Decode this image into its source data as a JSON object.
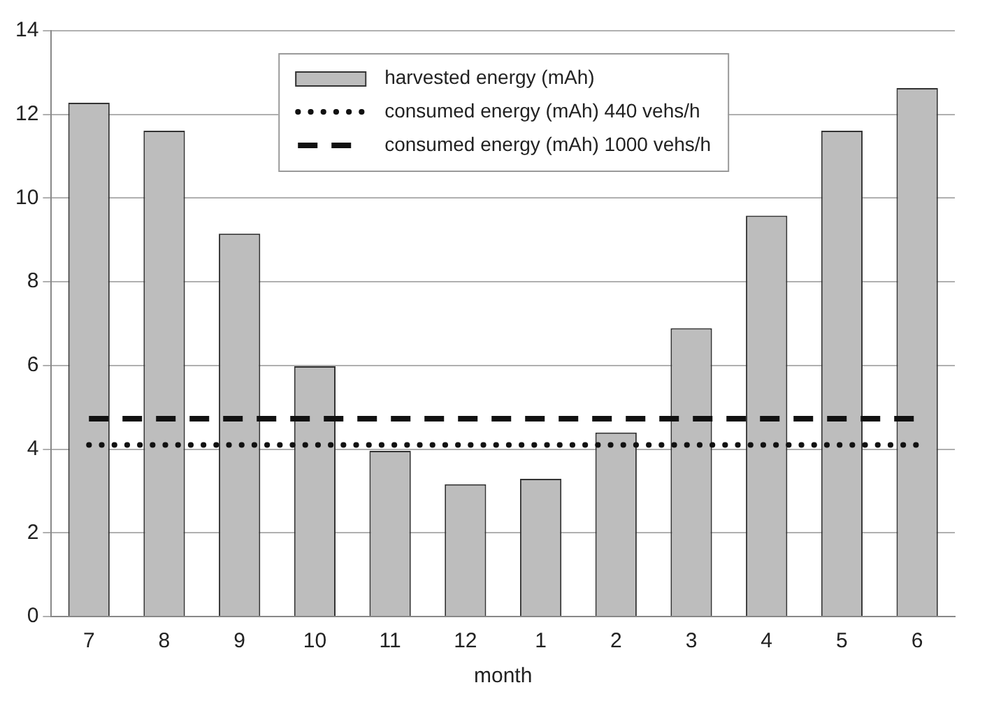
{
  "chart_data": {
    "type": "bar",
    "xlabel": "month",
    "categories": [
      "7",
      "8",
      "9",
      "10",
      "11",
      "12",
      "1",
      "2",
      "3",
      "4",
      "5",
      "6"
    ],
    "series": [
      {
        "name": "harvested energy (mAh)",
        "type": "bar",
        "color": "#bdbdbd",
        "values": [
          12.28,
          11.61,
          9.15,
          5.98,
          3.96,
          3.16,
          3.29,
          4.4,
          6.89,
          9.58,
          11.61,
          12.63
        ]
      },
      {
        "name": "consumed energy (mAh) 440 vehs/h",
        "type": "line",
        "color": "#111111",
        "line_style": "dotted",
        "values": [
          4.1,
          4.1,
          4.1,
          4.1,
          4.1,
          4.1,
          4.1,
          4.1,
          4.1,
          4.1,
          4.1,
          4.1
        ]
      },
      {
        "name": "consumed energy (mAh) 1000 vehs/h",
        "type": "line",
        "color": "#111111",
        "line_style": "dashed",
        "values": [
          4.73,
          4.73,
          4.73,
          4.73,
          4.73,
          4.73,
          4.73,
          4.73,
          4.73,
          4.73,
          4.73,
          4.73
        ]
      }
    ],
    "ylim": [
      0,
      14
    ],
    "yticks": [
      0,
      2,
      4,
      6,
      8,
      10,
      12,
      14
    ],
    "grid": "y",
    "legend": "top",
    "marker": "none"
  }
}
